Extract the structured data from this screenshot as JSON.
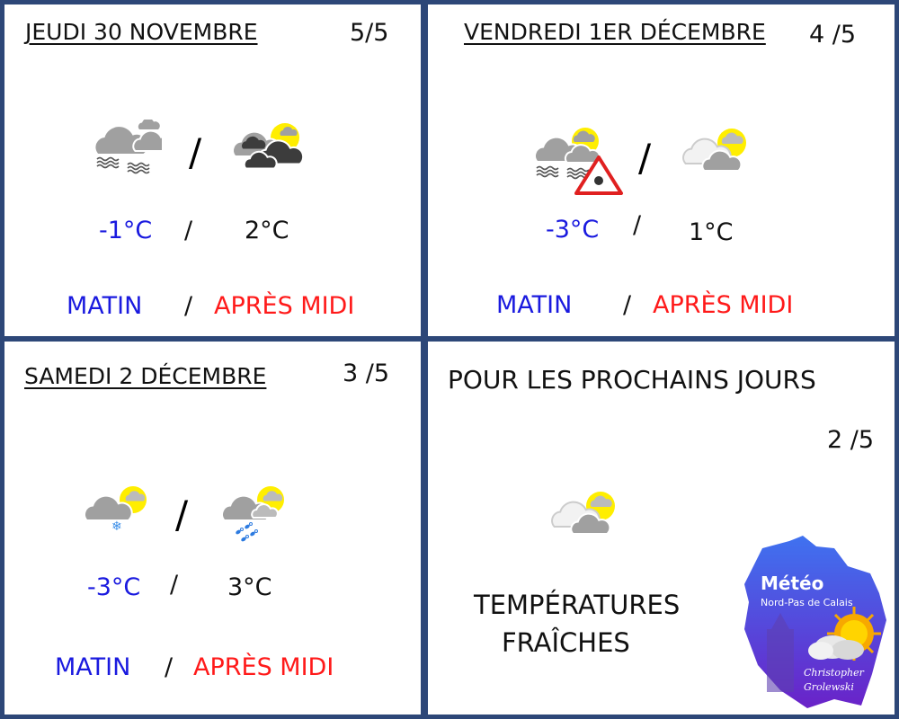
{
  "days": [
    {
      "title": "Jeudi 30 novembre",
      "rating": "5/5",
      "morning_temp": "-1°C",
      "afternoon_temp": "2°C",
      "morning_icon": "fog-cloudy-icon",
      "afternoon_icon": "sun-dark-clouds-icon"
    },
    {
      "title": "Vendredi 1er décembre",
      "rating": "4 /5",
      "morning_temp": "-3°C",
      "afternoon_temp": "1°C",
      "morning_icon": "fog-cloudy-black-ice-warning-icon",
      "afternoon_icon": "sun-clouds-icon"
    },
    {
      "title": "Samedi 2 décembre",
      "rating": "3 /5",
      "morning_temp": "-3°C",
      "afternoon_temp": "3°C",
      "morning_icon": "sun-cloud-snow-icon",
      "afternoon_icon": "sun-cloud-sleet-icon"
    }
  ],
  "separator": "/",
  "labels": {
    "morning": "Matin",
    "afternoon": "Après midi"
  },
  "next_days": {
    "title": "Pour les prochains jours",
    "rating": "2 /5",
    "icon": "sun-clouds-icon",
    "line1": "Températures",
    "line2": "fraîches"
  },
  "logo": {
    "title": "Météo",
    "subtitle": "Nord-Pas de Calais",
    "author_line1": "Christopher",
    "author_line2": "Grolewski"
  },
  "colors": {
    "border": "#2d4778",
    "morning": "#1a1adf",
    "afternoon": "#ff1a1a",
    "sun": "#ffee00",
    "cloud": "#a0a0a0",
    "dark_cloud": "#3c3c3c"
  }
}
